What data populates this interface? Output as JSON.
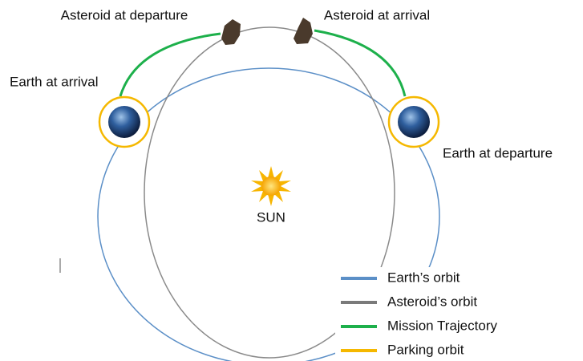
{
  "labels": {
    "asteroid_departure": "Asteroid at departure",
    "asteroid_arrival": "Asteroid at arrival",
    "earth_arrival": "Earth at arrival",
    "earth_departure": "Earth at departure",
    "sun": "SUN"
  },
  "legend": [
    "Earth’s orbit",
    "Asteroid’s orbit",
    "Mission Trajectory",
    "Parking orbit"
  ]
}
